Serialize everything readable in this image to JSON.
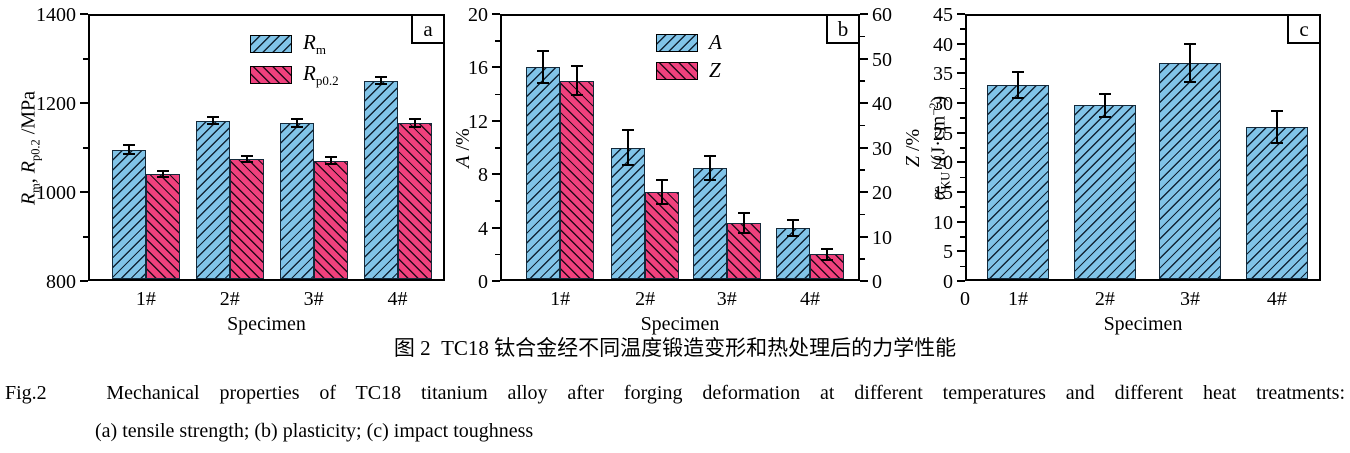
{
  "caption": {
    "zh": "图 2  TC18 钛合金经不同温度锻造变形和热处理后的力学性能",
    "en": "Fig.2   Mechanical properties of TC18 titanium alloy after forging deformation at different temperatures and different heat treatments:",
    "sub": "(a) tensile strength; (b) plasticity; (c) impact toughness"
  },
  "colors": {
    "blue": "#81C4E8",
    "pink": "#F0417D",
    "axis": "#000000"
  },
  "chart_data": [
    {
      "panel": "a",
      "type": "bar",
      "categories": [
        "1#",
        "2#",
        "3#",
        "4#"
      ],
      "xlabel": "Specimen",
      "grid": false,
      "legend": true,
      "axes": {
        "left": {
          "label": "Rm, Rp0.2 /MPa",
          "label_segments": [
            [
              "R",
              "i"
            ],
            [
              "m",
              "sub"
            ],
            [
              ", ",
              ""
            ],
            [
              "R",
              "i"
            ],
            [
              "p0.2",
              "sub"
            ],
            [
              " /MPa",
              ""
            ]
          ],
          "ylim": [
            800,
            1400
          ],
          "majors": [
            800,
            1000,
            1200,
            1400
          ],
          "minors": [
            900,
            1100,
            1300
          ]
        },
        "right": null,
        "x_origin_label": null
      },
      "series": [
        {
          "name": "Rm",
          "axis": "left",
          "color": "blue",
          "hatch": "fwd",
          "label_segments": [
            [
              "R",
              "i"
            ],
            [
              "m",
              "sub"
            ]
          ],
          "values": [
            1095,
            1160,
            1155,
            1250
          ],
          "errors": [
            10,
            8,
            8,
            8
          ]
        },
        {
          "name": "Rp0.2",
          "axis": "left",
          "color": "pink",
          "hatch": "back",
          "label_segments": [
            [
              "R",
              "i"
            ],
            [
              "p0.2",
              "sub"
            ]
          ],
          "values": [
            1040,
            1075,
            1070,
            1155
          ],
          "errors": [
            7,
            7,
            8,
            10
          ]
        }
      ]
    },
    {
      "panel": "b",
      "type": "bar",
      "categories": [
        "1#",
        "2#",
        "3#",
        "4#"
      ],
      "xlabel": "Specimen",
      "grid": false,
      "legend": true,
      "axes": {
        "left": {
          "label": "A /%",
          "label_segments": [
            [
              "A",
              "i"
            ],
            [
              " /%",
              ""
            ]
          ],
          "ylim": [
            0,
            20
          ],
          "majors": [
            0,
            4,
            8,
            12,
            16,
            20
          ],
          "minors": [
            2,
            6,
            10,
            14,
            18
          ]
        },
        "right": {
          "label": "Z /%",
          "label_segments": [
            [
              "Z",
              "i"
            ],
            [
              " /%",
              ""
            ]
          ],
          "ylim": [
            0,
            60
          ],
          "majors": [
            0,
            10,
            20,
            30,
            40,
            50,
            60
          ],
          "minors": [
            5,
            15,
            25,
            35,
            45,
            55
          ]
        },
        "x_origin_label": null
      },
      "series": [
        {
          "name": "A",
          "axis": "left",
          "color": "blue",
          "hatch": "fwd",
          "label_segments": [
            [
              "A",
              "i"
            ]
          ],
          "values": [
            16.0,
            10.0,
            8.5,
            4.0
          ],
          "errors": [
            1.2,
            1.3,
            0.9,
            0.6
          ]
        },
        {
          "name": "Z",
          "axis": "right",
          "color": "pink",
          "hatch": "back",
          "label_segments": [
            [
              "Z",
              "i"
            ]
          ],
          "values": [
            45,
            20,
            13,
            6
          ],
          "errors": [
            3.3,
            2.7,
            2.2,
            1.3
          ]
        }
      ]
    },
    {
      "panel": "c",
      "type": "bar",
      "categories": [
        "1#",
        "2#",
        "3#",
        "4#"
      ],
      "xlabel": "Specimen",
      "grid": false,
      "legend": false,
      "axes": {
        "left": {
          "label": "αKU /(J·cm−2)",
          "label_segments": [
            [
              "α",
              "i"
            ],
            [
              "KU",
              "sub"
            ],
            [
              " /(J·cm",
              ""
            ],
            [
              "−2",
              "sup"
            ],
            [
              ")",
              ""
            ]
          ],
          "ylim": [
            0,
            45
          ],
          "majors": [
            0,
            5,
            10,
            15,
            20,
            25,
            30,
            35,
            40,
            45
          ],
          "minors": [
            2.5,
            7.5,
            12.5,
            17.5,
            22.5,
            27.5,
            32.5,
            37.5,
            42.5
          ]
        },
        "right": null,
        "x_origin_label": "0"
      },
      "series": [
        {
          "name": "aKU",
          "axis": "left",
          "color": "blue",
          "hatch": "fwd",
          "label_segments": [
            [
              "α",
              "i"
            ],
            [
              "KU",
              "sub"
            ]
          ],
          "values": [
            33,
            29.6,
            36.8,
            26
          ],
          "errors": [
            2.2,
            1.9,
            3.2,
            2.7
          ]
        }
      ]
    }
  ]
}
